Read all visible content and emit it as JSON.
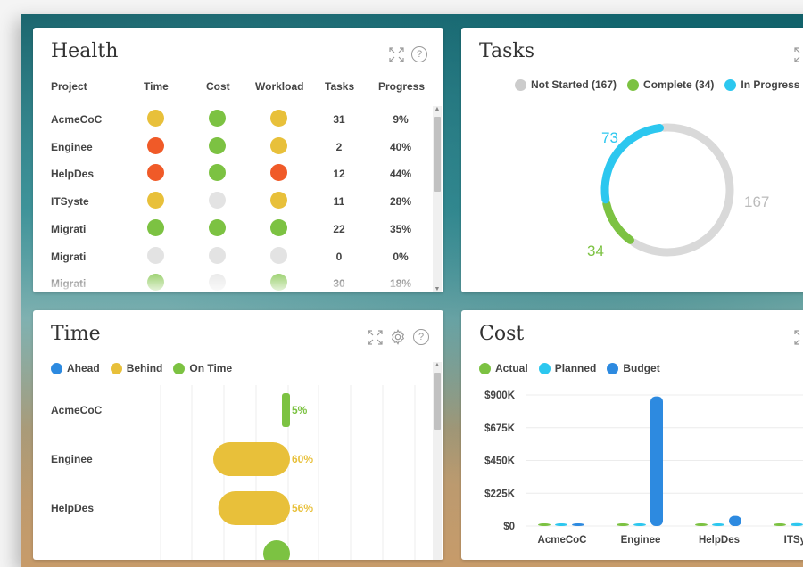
{
  "colors": {
    "yellow": "#e8c03a",
    "red": "#f05a28",
    "green": "#7cc242",
    "gray": "#e3e3e3",
    "blue": "#2d8ae0",
    "cyan": "#2cc7ef",
    "donut_gray": "#d9d9d9"
  },
  "health": {
    "title": "Health",
    "columns": [
      "Project",
      "Time",
      "Cost",
      "Workload",
      "Tasks",
      "Progress"
    ],
    "rows": [
      {
        "project": "AcmeCoC",
        "time": "yellow",
        "cost": "green",
        "workload": "yellow",
        "tasks": "31",
        "progress": "9%"
      },
      {
        "project": "Enginee",
        "time": "red",
        "cost": "green",
        "workload": "yellow",
        "tasks": "2",
        "progress": "40%"
      },
      {
        "project": "HelpDes",
        "time": "red",
        "cost": "green",
        "workload": "red",
        "tasks": "12",
        "progress": "44%"
      },
      {
        "project": "ITSyste",
        "time": "yellow",
        "cost": "gray",
        "workload": "yellow",
        "tasks": "11",
        "progress": "28%"
      },
      {
        "project": "Migrati",
        "time": "green",
        "cost": "green",
        "workload": "green",
        "tasks": "22",
        "progress": "35%"
      },
      {
        "project": "Migrati",
        "time": "gray",
        "cost": "gray",
        "workload": "gray",
        "tasks": "0",
        "progress": "0%"
      },
      {
        "project": "Migrati",
        "time": "green",
        "cost": "gray",
        "workload": "green",
        "tasks": "30",
        "progress": "18%"
      }
    ],
    "icons": {
      "expand": "expand-icon",
      "help": "help-icon"
    }
  },
  "tasks": {
    "title": "Tasks",
    "legend": [
      {
        "label": "Not Started (167)",
        "color": "#cccccc"
      },
      {
        "label": "Complete (34)",
        "color": "#7cc242"
      },
      {
        "label": "In Progress (",
        "color": "#2cc7ef"
      }
    ],
    "labels": {
      "in_progress": "73",
      "complete": "34",
      "not_started": "167"
    }
  },
  "time": {
    "title": "Time",
    "legend": [
      {
        "label": "Ahead",
        "color": "#2d8ae0"
      },
      {
        "label": "Behind",
        "color": "#e8c03a"
      },
      {
        "label": "On Time",
        "color": "#7cc242"
      }
    ],
    "icons": {
      "expand": "expand-icon",
      "settings": "gear-icon",
      "help": "help-icon"
    }
  },
  "cost": {
    "title": "Cost",
    "legend": [
      {
        "label": "Actual",
        "color": "#7cc242"
      },
      {
        "label": "Planned",
        "color": "#2cc7ef"
      },
      {
        "label": "Budget",
        "color": "#2d8ae0"
      }
    ]
  },
  "chart_data": [
    {
      "type": "pie",
      "title": "Tasks",
      "categories": [
        "Not Started",
        "Complete",
        "In Progress"
      ],
      "values": [
        167,
        34,
        73
      ],
      "legend": [
        "Not Started (167)",
        "Complete (34)",
        "In Progress ("
      ],
      "legend_position": "top",
      "style": "donut"
    },
    {
      "type": "bar",
      "title": "Time",
      "orientation": "horizontal",
      "categories": [
        "AcmeCoC",
        "Enginee",
        "HelpDes"
      ],
      "series": [
        {
          "name": "Ahead",
          "values": [
            0,
            0,
            0
          ]
        },
        {
          "name": "Behind",
          "values": [
            0,
            60,
            56
          ]
        },
        {
          "name": "On Time",
          "values": [
            5,
            0,
            0
          ]
        }
      ],
      "labels": [
        "5%",
        "60%",
        "56%"
      ],
      "legend_position": "top-left"
    },
    {
      "type": "bar",
      "title": "Cost",
      "categories": [
        "AcmeCoC",
        "Enginee",
        "HelpDes",
        "ITSys"
      ],
      "series": [
        {
          "name": "Actual",
          "values": [
            2000,
            2000,
            4000,
            6000
          ]
        },
        {
          "name": "Planned",
          "values": [
            8000,
            4000,
            6000,
            20000
          ]
        },
        {
          "name": "Budget",
          "values": [
            6000,
            890000,
            70000,
            0
          ]
        }
      ],
      "yticks": [
        "$900K",
        "$675K",
        "$450K",
        "$225K",
        "$0"
      ],
      "ylim": [
        0,
        900000
      ],
      "legend_position": "top-left"
    }
  ]
}
